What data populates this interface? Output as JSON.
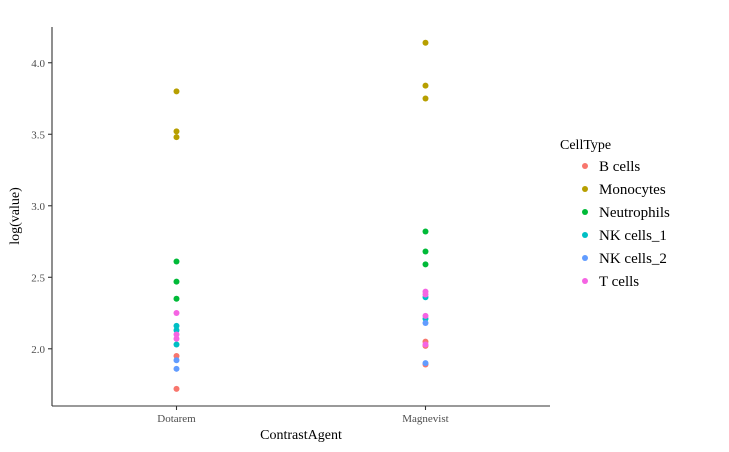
{
  "chart_data": {
    "type": "scatter",
    "title": "",
    "xlabel": "ContrastAgent",
    "ylabel": "log(value)",
    "categories": [
      "Dotarem",
      "Magnevist"
    ],
    "ylim": [
      1.6,
      4.25
    ],
    "yticks": [
      "2.0",
      "2.5",
      "3.0",
      "3.5",
      "4.0"
    ],
    "grid": false,
    "legend": {
      "title": "CellType",
      "position": "right"
    },
    "series": [
      {
        "name": "B cells",
        "color": "#F8766D",
        "points": [
          {
            "x": "Dotarem",
            "y": 1.72
          },
          {
            "x": "Dotarem",
            "y": 1.95
          },
          {
            "x": "Magnevist",
            "y": 1.89
          },
          {
            "x": "Magnevist",
            "y": 2.02
          },
          {
            "x": "Magnevist",
            "y": 2.05
          }
        ]
      },
      {
        "name": "Monocytes",
        "color": "#B79F00",
        "points": [
          {
            "x": "Dotarem",
            "y": 3.48
          },
          {
            "x": "Dotarem",
            "y": 3.52
          },
          {
            "x": "Dotarem",
            "y": 3.8
          },
          {
            "x": "Magnevist",
            "y": 3.75
          },
          {
            "x": "Magnevist",
            "y": 3.84
          },
          {
            "x": "Magnevist",
            "y": 4.14
          }
        ]
      },
      {
        "name": "Neutrophils",
        "color": "#00BA38",
        "points": [
          {
            "x": "Dotarem",
            "y": 2.35
          },
          {
            "x": "Dotarem",
            "y": 2.47
          },
          {
            "x": "Dotarem",
            "y": 2.61
          },
          {
            "x": "Magnevist",
            "y": 2.59
          },
          {
            "x": "Magnevist",
            "y": 2.68
          },
          {
            "x": "Magnevist",
            "y": 2.82
          }
        ]
      },
      {
        "name": "NK cells_1",
        "color": "#00BFC4",
        "points": [
          {
            "x": "Dotarem",
            "y": 2.03
          },
          {
            "x": "Dotarem",
            "y": 2.13
          },
          {
            "x": "Dotarem",
            "y": 2.16
          },
          {
            "x": "Magnevist",
            "y": 2.21
          },
          {
            "x": "Magnevist",
            "y": 2.36
          }
        ]
      },
      {
        "name": "NK cells_2",
        "color": "#619CFF",
        "points": [
          {
            "x": "Dotarem",
            "y": 1.86
          },
          {
            "x": "Dotarem",
            "y": 1.92
          },
          {
            "x": "Magnevist",
            "y": 1.9
          },
          {
            "x": "Magnevist",
            "y": 2.18
          }
        ]
      },
      {
        "name": "T cells",
        "color": "#F564E3",
        "points": [
          {
            "x": "Dotarem",
            "y": 2.07
          },
          {
            "x": "Dotarem",
            "y": 2.1
          },
          {
            "x": "Dotarem",
            "y": 2.25
          },
          {
            "x": "Magnevist",
            "y": 2.03
          },
          {
            "x": "Magnevist",
            "y": 2.23
          },
          {
            "x": "Magnevist",
            "y": 2.38
          },
          {
            "x": "Magnevist",
            "y": 2.4
          }
        ]
      }
    ]
  }
}
